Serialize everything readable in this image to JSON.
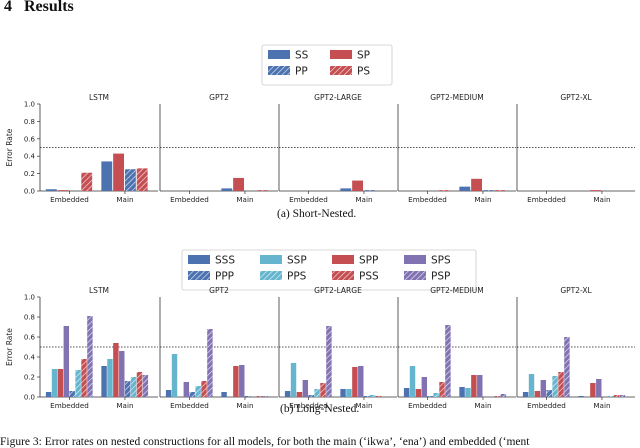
{
  "section": {
    "number": "4",
    "title": "Results"
  },
  "colors": {
    "SS": "#4c72b0",
    "SP": "#c44e52",
    "PP": "#4c72b0",
    "PS": "#c44e52",
    "SSS": "#4c72b0",
    "SSP": "#64b5cd",
    "SPP": "#c44e52",
    "SPS": "#8172b2",
    "PPP": "#4c72b0",
    "PPS": "#64b5cd",
    "PSS": "#c44e52",
    "PSP": "#8172b2"
  },
  "legend_top": [
    {
      "key": "SS",
      "hatch": false
    },
    {
      "key": "SP",
      "hatch": false
    },
    {
      "key": "PP",
      "hatch": true
    },
    {
      "key": "PS",
      "hatch": true
    }
  ],
  "legend_bottom": [
    {
      "key": "SSS",
      "hatch": false
    },
    {
      "key": "SSP",
      "hatch": false
    },
    {
      "key": "SPP",
      "hatch": false
    },
    {
      "key": "SPS",
      "hatch": false
    },
    {
      "key": "PPP",
      "hatch": true
    },
    {
      "key": "PPS",
      "hatch": true
    },
    {
      "key": "PSS",
      "hatch": true
    },
    {
      "key": "PSP",
      "hatch": true
    }
  ],
  "caption_a": "(a) Short-Nested.",
  "caption_b": "(b) Long-Nested.",
  "figure_caption": "Figure 3: Error rates on nested constructions for all models, for both the main (‘ikwa’, ‘ena’) and embedded (‘ment",
  "chart_data": [
    {
      "type": "bar",
      "name": "short-nested",
      "ylabel": "Error Rate",
      "ylim": [
        0,
        1.0
      ],
      "yticks": [
        "0.0",
        "0.2",
        "0.4",
        "0.6",
        "0.8",
        "1.0"
      ],
      "reference_line": 0.5,
      "categories": [
        "Embedded",
        "Main"
      ],
      "series_order": [
        "SS",
        "SP",
        "PP",
        "PS"
      ],
      "panels": [
        {
          "title": "LSTM",
          "values": {
            "Embedded": [
              0.02,
              0.01,
              0.0,
              0.21
            ],
            "Main": [
              0.34,
              0.43,
              0.25,
              0.26
            ]
          }
        },
        {
          "title": "GPT2",
          "values": {
            "Embedded": [
              0.0,
              0.0,
              0.0,
              0.0
            ],
            "Main": [
              0.03,
              0.15,
              0.0,
              0.01
            ]
          }
        },
        {
          "title": "GPT2-LARGE",
          "values": {
            "Embedded": [
              0.0,
              0.0,
              0.0,
              0.0
            ],
            "Main": [
              0.03,
              0.12,
              0.01,
              0.0
            ]
          }
        },
        {
          "title": "GPT2-MEDIUM",
          "values": {
            "Embedded": [
              0.0,
              0.0,
              0.0,
              0.01
            ],
            "Main": [
              0.05,
              0.14,
              0.01,
              0.01
            ]
          }
        },
        {
          "title": "GPT2-XL",
          "values": {
            "Embedded": [
              0.0,
              0.0,
              0.0,
              0.0
            ],
            "Main": [
              0.0,
              0.01,
              0.0,
              0.0
            ]
          }
        }
      ]
    },
    {
      "type": "bar",
      "name": "long-nested",
      "ylabel": "Error Rate",
      "ylim": [
        0,
        1.0
      ],
      "yticks": [
        "0.0",
        "0.2",
        "0.4",
        "0.6",
        "0.8",
        "1.0"
      ],
      "reference_line": 0.5,
      "categories": [
        "Embedded",
        "Main"
      ],
      "series_order": [
        "SSS",
        "SSP",
        "SPP",
        "SPS",
        "PPP",
        "PPS",
        "PSS",
        "PSP"
      ],
      "panels": [
        {
          "title": "LSTM",
          "values": {
            "Embedded": [
              0.05,
              0.28,
              0.28,
              0.71,
              0.06,
              0.27,
              0.38,
              0.81
            ],
            "Main": [
              0.31,
              0.38,
              0.54,
              0.46,
              0.16,
              0.2,
              0.25,
              0.22
            ]
          }
        },
        {
          "title": "GPT2",
          "values": {
            "Embedded": [
              0.07,
              0.43,
              0.0,
              0.15,
              0.05,
              0.11,
              0.16,
              0.68
            ],
            "Main": [
              0.05,
              0.0,
              0.31,
              0.32,
              0.01,
              0.0,
              0.01,
              0.01
            ]
          }
        },
        {
          "title": "GPT2-LARGE",
          "values": {
            "Embedded": [
              0.06,
              0.34,
              0.05,
              0.17,
              0.02,
              0.08,
              0.14,
              0.71
            ],
            "Main": [
              0.08,
              0.08,
              0.3,
              0.31,
              0.01,
              0.02,
              0.01,
              0.0
            ]
          }
        },
        {
          "title": "GPT2-MEDIUM",
          "values": {
            "Embedded": [
              0.09,
              0.31,
              0.08,
              0.2,
              0.01,
              0.04,
              0.15,
              0.72
            ],
            "Main": [
              0.1,
              0.09,
              0.22,
              0.22,
              0.0,
              0.0,
              0.01,
              0.03
            ]
          }
        },
        {
          "title": "GPT2-XL",
          "values": {
            "Embedded": [
              0.05,
              0.23,
              0.06,
              0.17,
              0.07,
              0.21,
              0.25,
              0.6
            ],
            "Main": [
              0.01,
              0.0,
              0.14,
              0.18,
              0.0,
              0.01,
              0.02,
              0.02
            ]
          }
        }
      ]
    }
  ]
}
